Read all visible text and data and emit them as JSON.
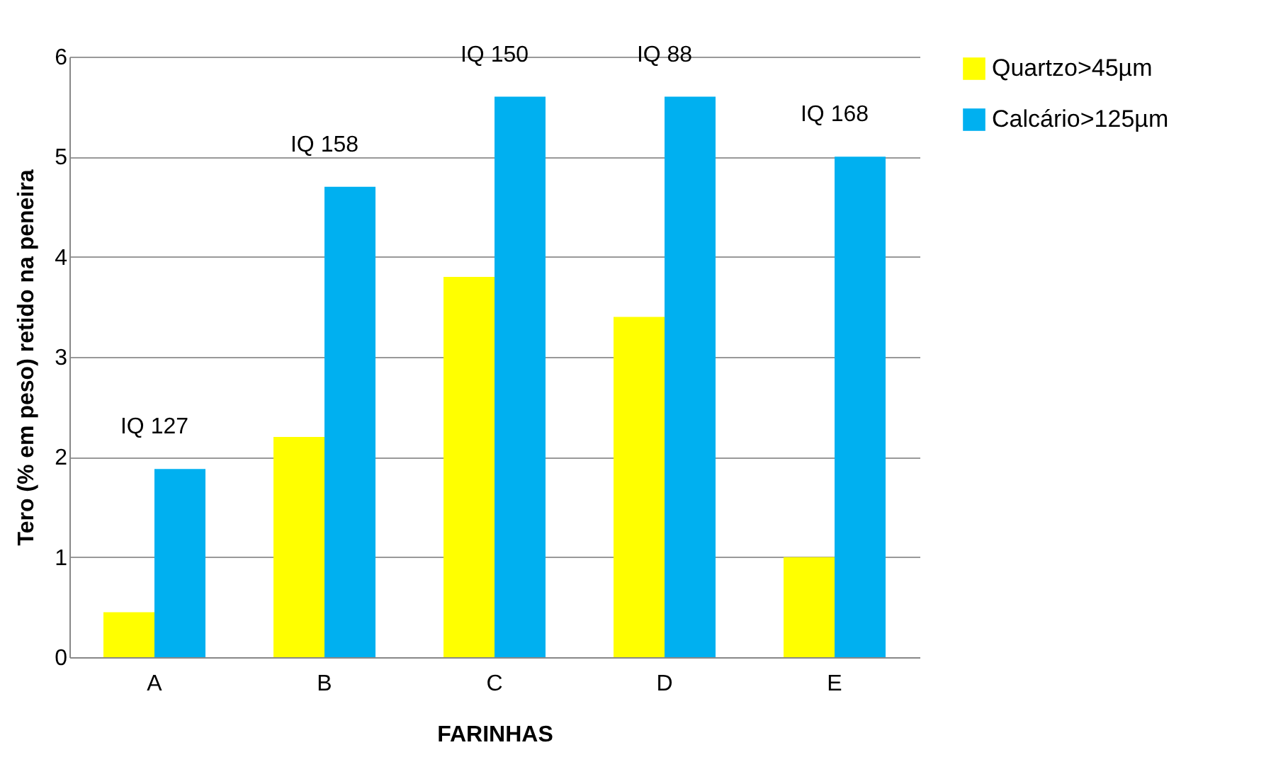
{
  "chart_data": {
    "type": "bar",
    "xlabel": "FARINHAS",
    "ylabel": "Tero (% em peso) retido na peneira",
    "categories": [
      "A",
      "B",
      "C",
      "D",
      "E"
    ],
    "series": [
      {
        "name": "Quartzo>45µm",
        "color": "#ffff00",
        "values": [
          0.45,
          2.2,
          3.8,
          3.4,
          1.0
        ]
      },
      {
        "name": "Calcário>125µm",
        "color": "#00b0f0",
        "values": [
          1.88,
          4.7,
          5.6,
          5.6,
          5.0
        ]
      }
    ],
    "ylim": [
      0,
      6
    ],
    "yticks": [
      0,
      1,
      2,
      3,
      4,
      5,
      6
    ],
    "grid": "y",
    "legend": "right",
    "annotations": [
      "IQ 127",
      "IQ 158",
      "IQ 150",
      "IQ 88",
      "IQ 168"
    ]
  }
}
